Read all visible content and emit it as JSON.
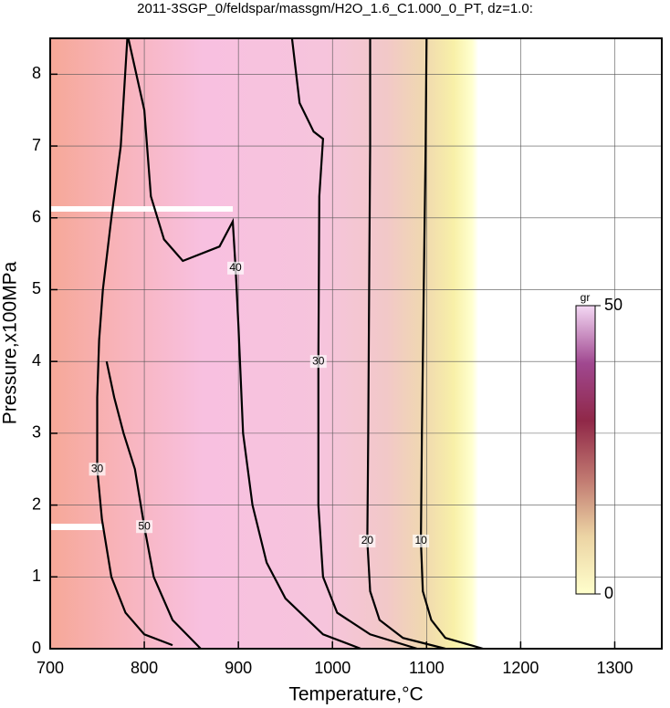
{
  "chart_data": {
    "type": "contour",
    "title": "2011-3SGP_0/feldspar/massgm/H2O_1.6_C1.000_0_PT, dz=1.0:",
    "x_label": "Temperature,°C",
    "y_label": "Pressure,x100MPa",
    "xlim": [
      700,
      1350
    ],
    "ylim": [
      0,
      8.5
    ],
    "xticks": [
      700,
      800,
      900,
      1000,
      1100,
      1200,
      1300
    ],
    "yticks": [
      0,
      1,
      2,
      3,
      4,
      5,
      6,
      7,
      8
    ],
    "grid": true,
    "series": [
      {
        "level": 10,
        "color": "#000000",
        "x": [
          1100,
          1099,
          1097,
          1095,
          1094,
          1096,
          1105,
          1120,
          1160
        ],
        "y": [
          8.5,
          7,
          5,
          3,
          1.5,
          0.8,
          0.4,
          0.15,
          0
        ]
      },
      {
        "level": 20,
        "color": "#000000",
        "x": [
          1040,
          1040,
          1039,
          1038,
          1037,
          1040,
          1050,
          1075,
          1120
        ],
        "y": [
          8.5,
          7,
          5,
          3,
          1.5,
          0.8,
          0.4,
          0.15,
          0
        ]
      },
      {
        "level": 30,
        "color": "#000000",
        "x": [
          957,
          965,
          980,
          990,
          986,
          985,
          985,
          990,
          1005,
          1040,
          1090
        ],
        "y": [
          8.5,
          7.6,
          7.2,
          7.1,
          6.3,
          4,
          2,
          1,
          0.5,
          0.2,
          0
        ]
      },
      {
        "level": 40,
        "color": "#000000",
        "x": [
          783,
          800,
          807,
          821,
          841,
          880,
          894,
          897,
          900,
          905,
          915,
          930,
          950,
          990,
          1030
        ],
        "y": [
          8.5,
          7.5,
          6.3,
          5.7,
          5.4,
          5.6,
          5.95,
          5.3,
          4.5,
          3,
          2,
          1.2,
          0.7,
          0.2,
          0
        ]
      },
      {
        "level": 50,
        "color": "#000000",
        "x": [
          760,
          768,
          778,
          790,
          800,
          810,
          830,
          860
        ],
        "y": [
          4.0,
          3.5,
          3.0,
          2.5,
          1.7,
          1.0,
          0.4,
          0
        ]
      },
      {
        "level": 30,
        "color": "#000000",
        "x": [
          782,
          775,
          765,
          756,
          752,
          750,
          750,
          755,
          765,
          780,
          800,
          830
        ],
        "y": [
          8.5,
          7,
          6,
          5,
          4.3,
          3.5,
          2.5,
          1.8,
          1.0,
          0.5,
          0.2,
          0.05
        ]
      }
    ],
    "colorbar": {
      "label": "gr",
      "range": [
        0,
        50
      ],
      "ticks": [
        0,
        50
      ],
      "colors": [
        "#ffffcc",
        "#ecd4a4",
        "#c07870",
        "#902848",
        "#a04890",
        "#f4d8f4"
      ]
    }
  }
}
